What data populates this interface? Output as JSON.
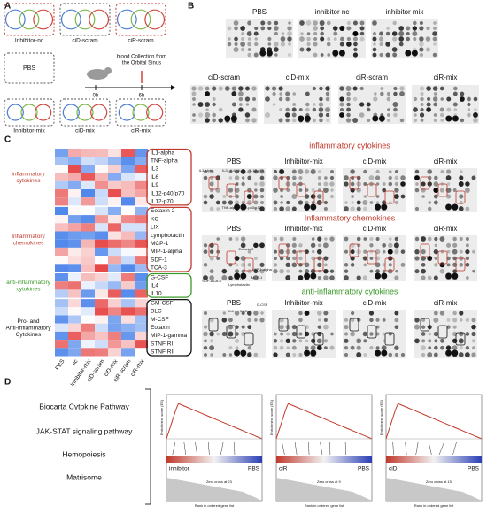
{
  "panel_a": {
    "label": "A",
    "top_groups": [
      "Inhibitor-nc",
      "ciD-scram",
      "ciR-scram"
    ],
    "pbs": "PBS",
    "collection": "blood Collection from the Orbital Sinus",
    "times": [
      "0h",
      "6h"
    ],
    "bottom_groups": [
      "Inhibitor-mix",
      "ciD-mix",
      "ciR-mix"
    ]
  },
  "panel_b": {
    "label": "B",
    "blots": [
      "PBS",
      "inhibitor nc",
      "inhibitor mix",
      "ciD-scram",
      "ciD-mix",
      "ciR-scram",
      "ciR-mix"
    ]
  },
  "panel_c": {
    "label": "C",
    "groups": [
      {
        "name": "inflammatory cytokines",
        "color": "#c0392b",
        "genes": [
          "IL1-alpha",
          "TNF-alpha",
          "IL3",
          "IL6",
          "IL9",
          "IL12-p40/p70",
          "IL12-p70"
        ]
      },
      {
        "name": "Inflammatory chemokines",
        "color": "#c0392b",
        "genes": [
          "Eotaxin-2",
          "KC",
          "LIX",
          "Lymphotactin",
          "MCP-1",
          "MIP-1-alpha",
          "SDF-1",
          "TCA-3"
        ]
      },
      {
        "name": "anti-inflammatory cytokines",
        "color": "#3a9a2a",
        "genes": [
          "G-CSF",
          "IL4",
          "IL10"
        ]
      },
      {
        "name": "Pro- and Anti-Inflammatory Cytokines",
        "color": "#111111",
        "genes": [
          "GM-CSF",
          "BLC",
          "M-CSF",
          "Eotaxin",
          "MIP-1-gamma",
          "STNF RI",
          "STNF RII"
        ]
      }
    ],
    "columns": [
      "PBS",
      "nc",
      "Inhibitor-mix",
      "ciD-scram",
      "ciD-mix",
      "ciR-scram",
      "ciR-mix"
    ],
    "sections": [
      {
        "title": "inflammatory cytokines",
        "color": "#c0392b",
        "columns": [
          "PBS",
          "Inhibitor-mix",
          "ciD-mix",
          "ciR-mix"
        ],
        "annotations": [
          "IL1-alpha",
          "IL3",
          "IL6",
          "IL9",
          "IL12-p70",
          "TNF-alpha",
          "IL12-p40/p70"
        ]
      },
      {
        "title": "Inflammatory chemokines",
        "color": "#c0392b",
        "columns": [
          "PBS",
          "Inhibitor-mix",
          "ciD-mix",
          "ciR-mix"
        ],
        "annotations": [
          "Eotaxin-2",
          "SDF-1",
          "TCA-3",
          "KC",
          "LIX",
          "MCP-1",
          "MIP-1-alpha",
          "Lymphotactin"
        ]
      },
      {
        "title": "anti-inflammatory cytokines",
        "color": "#3a9a2a",
        "columns": [
          "PBS",
          "Inhibitor-mix",
          "ciD-mix",
          "ciR-mix"
        ],
        "annotations": [
          "IL4",
          "IL10",
          "G-CSF"
        ]
      }
    ]
  },
  "panel_d": {
    "label": "D",
    "pathways": [
      "Biocarta Cytokine Pathway",
      "JAK-STAT signaling pathway",
      "Hemopoiesis",
      "Matrisome"
    ],
    "x_label": "Rank in ordered gene list",
    "y_label": "Enrichment score (ES)",
    "plots": [
      {
        "left": "inhibitor",
        "right": "PBS",
        "zero_cross": "Zero cross at 23"
      },
      {
        "left": "ciR",
        "right": "PBS",
        "zero_cross": "Zero cross at 9"
      },
      {
        "left": "ciD",
        "right": "PBS",
        "zero_cross": "Zero cross at 15"
      }
    ]
  }
}
